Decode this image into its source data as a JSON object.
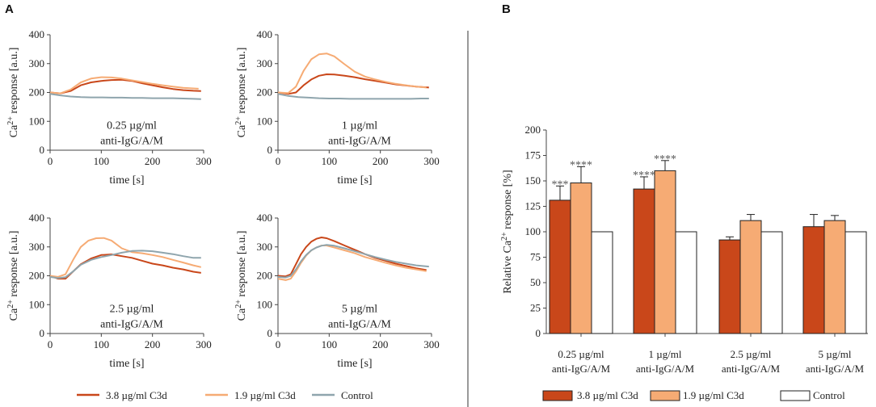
{
  "panel_a_letter": "A",
  "panel_b_letter": "B",
  "colors": {
    "dark_orange": "#c9471a",
    "light_orange": "#f6ab74",
    "control_gray": "#8fa5ad",
    "control_bar": "#ffffff",
    "axis": "#444444"
  },
  "chart_data": [
    {
      "type": "line",
      "panel": "A-1",
      "annotation_line1": "0.25 µg/ml",
      "annotation_line2": "anti-IgG/A/M",
      "ylabel_main": "Ca",
      "ylabel_sup": "2+",
      "ylabel_rest": " response [a.u.]",
      "xlabel": "time [s]",
      "xlim": [
        0,
        300
      ],
      "ylim": [
        0,
        400
      ],
      "xticks": [
        "0",
        "100",
        "200",
        "300"
      ],
      "yticks": [
        "0",
        "100",
        "200",
        "300",
        "400"
      ],
      "series": [
        {
          "name": "3.8 µg/ml C3d",
          "x": [
            0,
            20,
            40,
            60,
            80,
            100,
            120,
            140,
            160,
            180,
            200,
            220,
            240,
            260,
            280,
            295
          ],
          "y": [
            200,
            197,
            205,
            225,
            235,
            240,
            243,
            244,
            240,
            232,
            225,
            218,
            212,
            208,
            206,
            205
          ]
        },
        {
          "name": "1.9 µg/ml C3d",
          "x": [
            0,
            20,
            40,
            60,
            80,
            100,
            120,
            140,
            160,
            180,
            200,
            220,
            240,
            260,
            280,
            290
          ],
          "y": [
            200,
            197,
            210,
            235,
            248,
            253,
            252,
            248,
            242,
            236,
            230,
            225,
            220,
            216,
            214,
            213
          ]
        },
        {
          "name": "Control",
          "x": [
            0,
            20,
            40,
            60,
            80,
            100,
            120,
            140,
            160,
            180,
            200,
            220,
            240,
            260,
            280,
            295
          ],
          "y": [
            195,
            190,
            186,
            184,
            183,
            183,
            182,
            182,
            181,
            181,
            180,
            180,
            180,
            179,
            178,
            177
          ]
        }
      ]
    },
    {
      "type": "line",
      "panel": "A-2",
      "annotation_line1": "1 µg/ml",
      "annotation_line2": "anti-IgG/A/M",
      "ylabel_main": "Ca",
      "ylabel_sup": "2+",
      "ylabel_rest": " response [a.u.]",
      "xlabel": "time [s]",
      "xlim": [
        0,
        300
      ],
      "ylim": [
        0,
        400
      ],
      "xticks": [
        "0",
        "100",
        "200",
        "300"
      ],
      "yticks": [
        "0",
        "100",
        "200",
        "300",
        "400"
      ],
      "series": [
        {
          "name": "3.8 µg/ml C3d",
          "x": [
            0,
            20,
            35,
            50,
            65,
            80,
            95,
            110,
            130,
            150,
            170,
            190,
            210,
            230,
            250,
            270,
            295
          ],
          "y": [
            200,
            195,
            200,
            225,
            245,
            258,
            263,
            262,
            258,
            253,
            246,
            240,
            234,
            228,
            224,
            220,
            217
          ]
        },
        {
          "name": "1.9 µg/ml C3d",
          "x": [
            0,
            20,
            35,
            50,
            65,
            80,
            95,
            110,
            130,
            150,
            170,
            190,
            210,
            230,
            250,
            270,
            290
          ],
          "y": [
            200,
            198,
            220,
            275,
            315,
            332,
            335,
            325,
            298,
            272,
            255,
            245,
            237,
            230,
            225,
            220,
            217
          ]
        },
        {
          "name": "Control",
          "x": [
            0,
            20,
            40,
            60,
            80,
            100,
            120,
            140,
            160,
            180,
            200,
            220,
            240,
            260,
            280,
            295
          ],
          "y": [
            195,
            188,
            184,
            182,
            180,
            179,
            179,
            178,
            178,
            178,
            178,
            178,
            178,
            178,
            179,
            179
          ]
        }
      ]
    },
    {
      "type": "line",
      "panel": "A-3",
      "annotation_line1": "2.5 µg/ml",
      "annotation_line2": "anti-IgG/A/M",
      "ylabel_main": "Ca",
      "ylabel_sup": "2+",
      "ylabel_rest": " response [a.u.]",
      "xlabel": "time [s]",
      "xlim": [
        0,
        300
      ],
      "ylim": [
        0,
        400
      ],
      "xticks": [
        "0",
        "100",
        "200",
        "300"
      ],
      "yticks": [
        "0",
        "100",
        "200",
        "300",
        "400"
      ],
      "series": [
        {
          "name": "3.8 µg/ml C3d",
          "x": [
            0,
            15,
            30,
            45,
            60,
            80,
            100,
            120,
            140,
            160,
            180,
            200,
            220,
            240,
            260,
            280,
            295
          ],
          "y": [
            200,
            190,
            190,
            215,
            240,
            260,
            272,
            274,
            268,
            262,
            252,
            242,
            236,
            228,
            222,
            214,
            210
          ]
        },
        {
          "name": "1.9 µg/ml C3d",
          "x": [
            0,
            15,
            30,
            45,
            60,
            75,
            90,
            105,
            120,
            140,
            160,
            180,
            200,
            220,
            240,
            260,
            280,
            295
          ],
          "y": [
            200,
            196,
            205,
            255,
            300,
            322,
            330,
            331,
            322,
            295,
            282,
            278,
            272,
            265,
            255,
            246,
            236,
            230
          ]
        },
        {
          "name": "Control",
          "x": [
            0,
            15,
            30,
            45,
            60,
            80,
            100,
            120,
            140,
            160,
            180,
            200,
            220,
            240,
            260,
            280,
            295
          ],
          "y": [
            196,
            192,
            195,
            215,
            238,
            255,
            265,
            272,
            280,
            286,
            287,
            285,
            280,
            275,
            268,
            262,
            262
          ]
        }
      ]
    },
    {
      "type": "line",
      "panel": "A-4",
      "annotation_line1": "5 µg/ml",
      "annotation_line2": "anti-IgG/A/M",
      "ylabel_main": "Ca",
      "ylabel_sup": "2+",
      "ylabel_rest": " response [a.u.]",
      "xlabel": "time [s]",
      "xlim": [
        0,
        300
      ],
      "ylim": [
        0,
        400
      ],
      "xticks": [
        "0",
        "100",
        "200",
        "300"
      ],
      "yticks": [
        "0",
        "100",
        "200",
        "300",
        "400"
      ],
      "series": [
        {
          "name": "3.8 µg/ml C3d",
          "x": [
            0,
            15,
            25,
            35,
            45,
            55,
            65,
            75,
            85,
            95,
            110,
            130,
            150,
            170,
            190,
            210,
            230,
            250,
            270,
            290
          ],
          "y": [
            200,
            198,
            205,
            240,
            275,
            300,
            318,
            328,
            333,
            330,
            320,
            305,
            290,
            275,
            262,
            252,
            242,
            234,
            226,
            220
          ]
        },
        {
          "name": "1.9 µg/ml C3d",
          "x": [
            0,
            15,
            25,
            35,
            45,
            55,
            65,
            75,
            85,
            95,
            110,
            130,
            150,
            170,
            190,
            210,
            230,
            250,
            270,
            290
          ],
          "y": [
            190,
            185,
            190,
            215,
            245,
            270,
            288,
            298,
            305,
            305,
            298,
            288,
            278,
            265,
            255,
            245,
            236,
            228,
            222,
            216
          ]
        },
        {
          "name": "Control",
          "x": [
            0,
            15,
            25,
            35,
            45,
            55,
            65,
            75,
            85,
            95,
            110,
            130,
            150,
            170,
            190,
            210,
            230,
            250,
            270,
            295
          ],
          "y": [
            196,
            194,
            200,
            222,
            250,
            272,
            288,
            298,
            304,
            307,
            304,
            295,
            285,
            275,
            265,
            256,
            248,
            242,
            236,
            232
          ]
        }
      ]
    },
    {
      "type": "bar",
      "panel": "B",
      "ylabel_main": "Relative Ca",
      "ylabel_sup": "2+",
      "ylabel_rest": " response [%]",
      "ylim": [
        0,
        200
      ],
      "yticks": [
        "0",
        "25",
        "50",
        "75",
        "100",
        "125",
        "150",
        "175",
        "200"
      ],
      "categories": [
        {
          "line1": "0.25 µg/ml",
          "line2": "anti-IgG/A/M"
        },
        {
          "line1": "1 µg/ml",
          "line2": "anti-IgG/A/M"
        },
        {
          "line1": "2.5 µg/ml",
          "line2": "anti-IgG/A/M"
        },
        {
          "line1": "5 µg/ml",
          "line2": "anti-IgG/A/M"
        }
      ],
      "series": [
        {
          "name": "3.8 µg/ml C3d",
          "values": [
            131,
            142,
            92,
            105
          ],
          "errors": [
            14,
            12,
            3,
            12
          ],
          "significance": [
            "***",
            "****",
            "",
            ""
          ]
        },
        {
          "name": "1.9 µg/ml C3d",
          "values": [
            148,
            160,
            111,
            111
          ],
          "errors": [
            16,
            10,
            6,
            5
          ],
          "significance": [
            "****",
            "****",
            "",
            ""
          ]
        },
        {
          "name": "Control",
          "values": [
            100,
            100,
            100,
            100
          ],
          "errors": [
            0,
            0,
            0,
            0
          ],
          "significance": [
            "",
            "",
            "",
            ""
          ]
        }
      ]
    }
  ],
  "legend_a": [
    "3.8 µg/ml C3d",
    "1.9 µg/ml C3d",
    "Control"
  ],
  "legend_b": [
    "3.8 µg/ml C3d",
    "1.9 µg/ml C3d",
    "Control"
  ]
}
